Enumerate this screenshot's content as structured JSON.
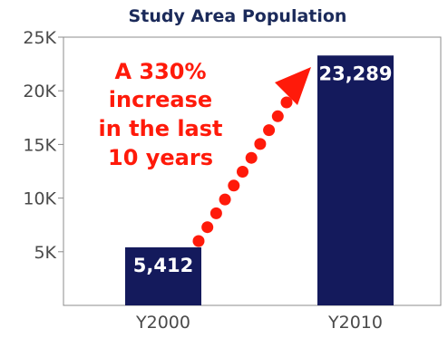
{
  "chart_data": {
    "type": "bar",
    "title": "Study Area Population",
    "categories": [
      "Y2000",
      "Y2010"
    ],
    "values": [
      5412,
      23289
    ],
    "data_labels": [
      "5,412",
      "23,289"
    ],
    "y_ticks": [
      5000,
      10000,
      15000,
      20000,
      25000
    ],
    "y_tick_labels": [
      "5K",
      "10K",
      "15K",
      "20K",
      "25K"
    ],
    "ylim": [
      0,
      25000
    ],
    "grid": false,
    "bar_color": "#141a5c",
    "annotation": {
      "lines": [
        "A 330%",
        "increase",
        "in the last",
        "10 years"
      ],
      "color": "#ff1a0a",
      "arrow": "dotted arrow from Y2000 bar to Y2010 bar"
    }
  }
}
